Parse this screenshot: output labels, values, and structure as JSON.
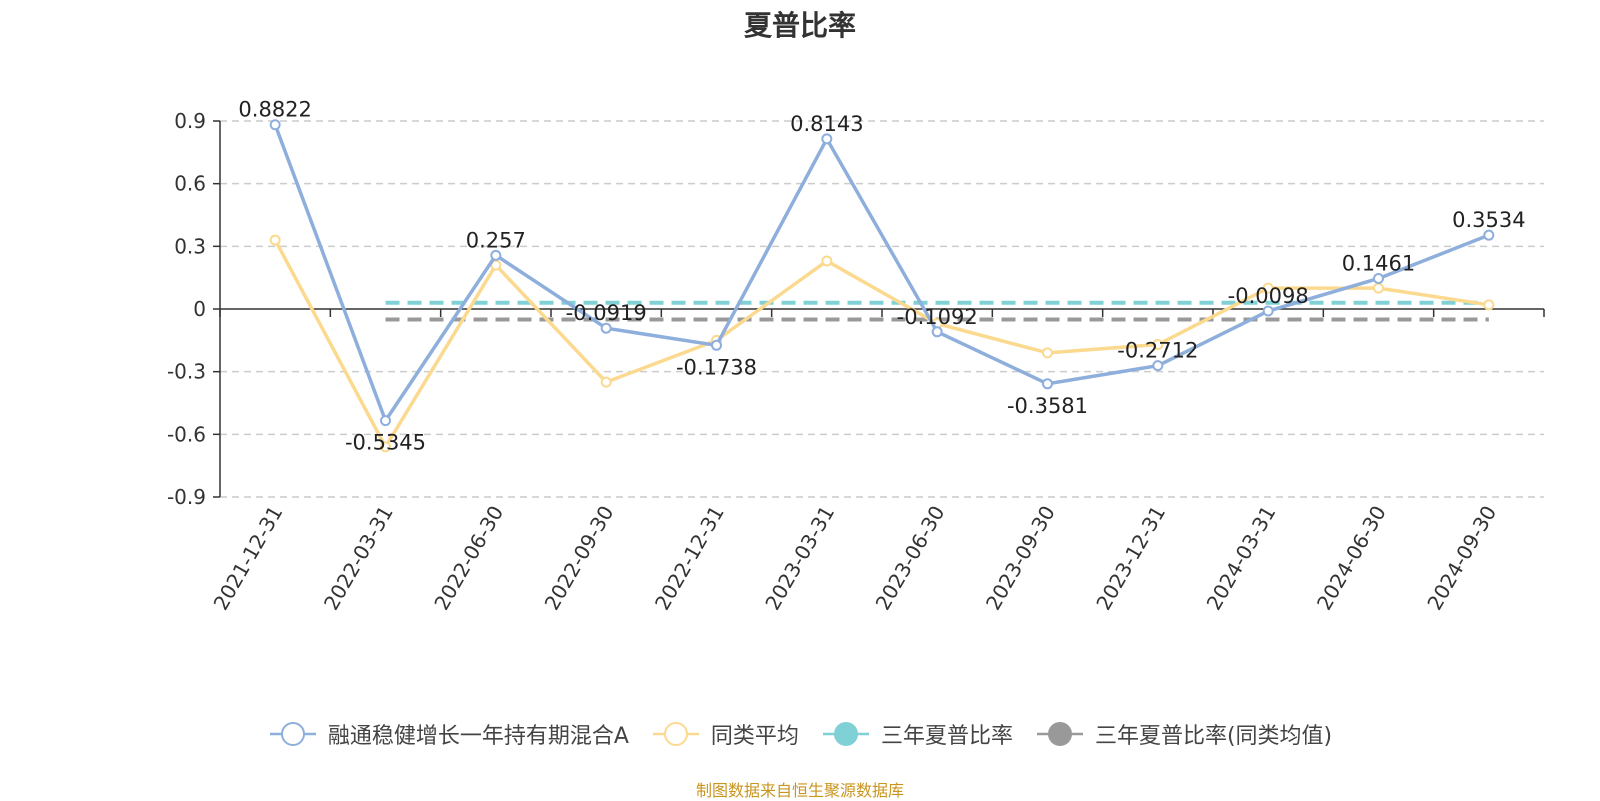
{
  "chart_data": {
    "type": "line",
    "title": "夏普比率",
    "categories": [
      "2021-12-31",
      "2022-03-31",
      "2022-06-30",
      "2022-09-30",
      "2022-12-31",
      "2023-03-31",
      "2023-06-30",
      "2023-09-30",
      "2023-12-31",
      "2024-03-31",
      "2024-06-30",
      "2024-09-30"
    ],
    "ylim": [
      -0.9,
      0.9
    ],
    "yticks": [
      "0.9",
      "0.6",
      "0.3",
      "0",
      "-0.3",
      "-0.6",
      "-0.9"
    ],
    "grid": true,
    "legend_position": "bottom",
    "series": [
      {
        "name": "融通稳健增长一年持有期混合A",
        "color": "#8eaedc",
        "values": [
          0.8822,
          -0.5345,
          0.257,
          -0.0919,
          -0.1738,
          0.8143,
          -0.1092,
          -0.3581,
          -0.2712,
          -0.0098,
          0.1461,
          0.3534
        ],
        "labels": [
          "0.8822",
          "-0.5345",
          "0.257",
          "-0.0919",
          "-0.1738",
          "0.8143",
          "-0.1092",
          "-0.3581",
          "-0.2712",
          "-0.0098",
          "0.1461",
          "0.3534"
        ]
      },
      {
        "name": "同类平均",
        "color": "#fbd98f",
        "values": [
          0.33,
          -0.66,
          0.21,
          -0.35,
          -0.15,
          0.23,
          -0.07,
          -0.21,
          -0.17,
          0.1,
          0.1,
          0.02
        ]
      },
      {
        "name": "三年夏普比率",
        "color": "#7fd1d6",
        "style": "dashed",
        "value": 0.03
      },
      {
        "name": "三年夏普比率(同类均值)",
        "color": "#999999",
        "style": "dashed",
        "value": -0.05
      }
    ]
  },
  "source_note": "制图数据来自恒生聚源数据库"
}
